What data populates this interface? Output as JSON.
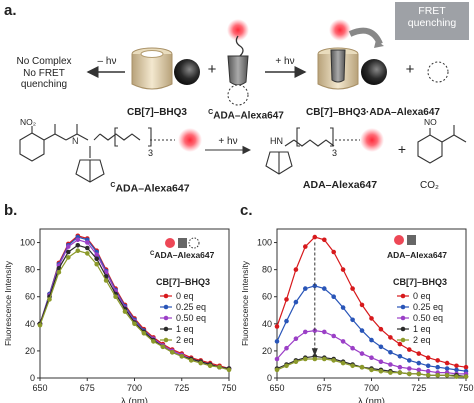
{
  "panel_labels": {
    "a": "a.",
    "b": "b.",
    "c": "c."
  },
  "scheme": {
    "left_result": "No Complex\nNo FRET\nquenching",
    "arrow_left_label": "– hν",
    "arrow_right_label": "+ hν",
    "fret_badge": "FRET\nquenching",
    "label_cb7": "CB[7]–BHQ3",
    "label_cada_sup": "C",
    "label_cada_main": "ADA–Alexa647",
    "label_complex": "CB[7]–BHQ3·ADA–Alexa647",
    "plus": "+"
  },
  "chemistry": {
    "nitro": "NO₂",
    "peg_repeat": "3",
    "cada_sup": "C",
    "cada_main": "ADA–Alexa647",
    "arrow_label": "+ hν",
    "hn": "HN",
    "product": "ADA–Alexa647",
    "no": "NO",
    "co2": "CO₂",
    "plus": "+"
  },
  "colors": {
    "alexa": "#e8192c",
    "bhq": "#333333",
    "cb7": "#d8c7a4",
    "s0": "#d7191c",
    "s025": "#2955b8",
    "s050": "#9b3fc7",
    "s1": "#2a2a2a",
    "s2": "#8c9a2a"
  },
  "chart_data": [
    {
      "type": "line",
      "panel": "b",
      "xlabel": "λ (nm)",
      "ylabel": "Fluorescence Intensity",
      "xlim": [
        650,
        750
      ],
      "ylim": [
        0,
        110
      ],
      "x_ticks": [
        650,
        675,
        700,
        725,
        750
      ],
      "y_ticks": [
        0,
        20,
        40,
        60,
        80,
        100
      ],
      "legend_title": "CB[7]–BHQ3",
      "inset_label_sup": "C",
      "inset_label_main": "ADA–Alexa647",
      "x": [
        650,
        655,
        660,
        665,
        670,
        675,
        680,
        685,
        690,
        695,
        700,
        705,
        710,
        715,
        720,
        725,
        730,
        735,
        740,
        745,
        750
      ],
      "series": [
        {
          "name": "0 eq",
          "color": "#d7191c",
          "values": [
            40,
            62,
            85,
            99,
            105,
            103,
            94,
            80,
            66,
            54,
            44,
            36,
            30,
            25,
            21,
            18,
            15,
            13,
            11,
            9,
            7
          ]
        },
        {
          "name": "0.25 eq",
          "color": "#2955b8",
          "values": [
            40,
            62,
            84,
            98,
            104,
            102,
            93,
            79,
            65,
            53,
            43,
            35,
            29,
            24,
            20,
            17,
            14,
            12,
            10,
            8,
            7
          ]
        },
        {
          "name": "0.50 eq",
          "color": "#9b3fc7",
          "values": [
            40,
            61,
            83,
            97,
            102,
            100,
            91,
            78,
            64,
            52,
            42,
            34,
            29,
            24,
            20,
            17,
            14,
            12,
            10,
            8,
            7
          ]
        },
        {
          "name": "1 eq",
          "color": "#2a2a2a",
          "values": [
            40,
            60,
            81,
            93,
            98,
            96,
            88,
            75,
            62,
            51,
            41,
            34,
            28,
            23,
            19,
            16,
            14,
            12,
            10,
            8,
            7
          ]
        },
        {
          "name": "2 eq",
          "color": "#8c9a2a",
          "values": [
            39,
            58,
            78,
            89,
            94,
            92,
            84,
            72,
            60,
            49,
            40,
            33,
            27,
            23,
            19,
            16,
            13,
            11,
            9,
            8,
            6
          ]
        }
      ]
    },
    {
      "type": "line",
      "panel": "c",
      "xlabel": "λ (nm)",
      "ylabel": "Fluorescence Intensity",
      "xlim": [
        650,
        750
      ],
      "ylim": [
        0,
        110
      ],
      "x_ticks": [
        650,
        675,
        700,
        725,
        750
      ],
      "y_ticks": [
        0,
        20,
        40,
        60,
        80,
        100
      ],
      "legend_title": "CB[7]–BHQ3",
      "inset_label": "ADA–Alexa647",
      "x": [
        650,
        655,
        660,
        665,
        670,
        675,
        680,
        685,
        690,
        695,
        700,
        705,
        710,
        715,
        720,
        725,
        730,
        735,
        740,
        745,
        750
      ],
      "series": [
        {
          "name": "0 eq",
          "color": "#d7191c",
          "values": [
            38,
            58,
            80,
            97,
            104,
            102,
            93,
            80,
            66,
            54,
            44,
            36,
            30,
            25,
            21,
            18,
            15,
            13,
            11,
            9,
            8
          ]
        },
        {
          "name": "0.25 eq",
          "color": "#2955b8",
          "values": [
            27,
            42,
            56,
            66,
            68,
            66,
            60,
            52,
            43,
            35,
            28,
            23,
            19,
            16,
            13,
            11,
            9,
            8,
            7,
            6,
            5
          ]
        },
        {
          "name": "0.50 eq",
          "color": "#9b3fc7",
          "values": [
            14,
            22,
            29,
            34,
            35,
            34,
            31,
            27,
            22,
            18,
            15,
            12,
            10,
            8,
            7,
            6,
            5,
            4,
            4,
            3,
            3
          ]
        },
        {
          "name": "1 eq",
          "color": "#2a2a2a",
          "values": [
            7,
            10,
            13,
            15,
            16,
            15,
            14,
            12,
            10,
            8,
            7,
            6,
            5,
            4,
            3,
            3,
            2,
            2,
            2,
            2,
            1
          ]
        },
        {
          "name": "2 eq",
          "color": "#8c9a2a",
          "values": [
            6,
            9,
            12,
            14,
            14,
            14,
            13,
            11,
            9,
            8,
            6,
            5,
            4,
            4,
            3,
            3,
            2,
            2,
            2,
            1,
            1
          ]
        }
      ]
    }
  ]
}
